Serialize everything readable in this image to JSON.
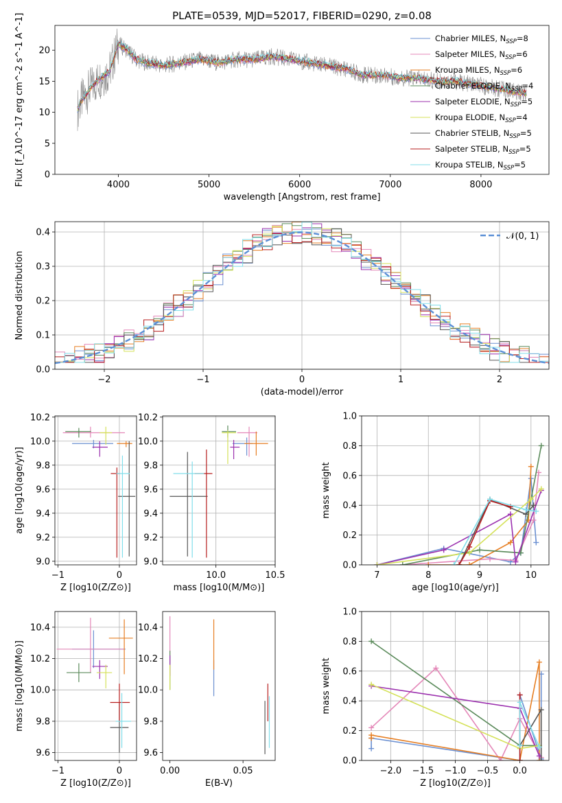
{
  "title": "PLATE=0539, MJD=52017, FIBERID=0290, z=0.08",
  "colors": [
    "#6a8fd1",
    "#e487b8",
    "#e67e22",
    "#5a8a5a",
    "#9b2fae",
    "#d4e157",
    "#555555",
    "#b71c1c",
    "#80deea"
  ],
  "chart_data": [
    {
      "type": "line",
      "panel": "spectrum",
      "title": "PLATE=0539, MJD=52017, FIBERID=0290, z=0.08",
      "xlabel": "wavelength [Angstrom, rest frame]",
      "ylabel": "Flux [f_λ10^-17 erg cm^-2 s^-1 A^-1]",
      "xlim": [
        3300,
        8750
      ],
      "ylim": [
        0,
        24
      ],
      "xticks": [
        4000,
        5000,
        6000,
        7000,
        8000
      ],
      "yticks": [
        0,
        5,
        10,
        15,
        20
      ],
      "legend_position": "top-right",
      "observed": {
        "x": [
          3550,
          3600,
          3700,
          3800,
          3900,
          4000,
          4100,
          4200,
          4300,
          4500,
          4700,
          4900,
          5100,
          5300,
          5500,
          5700,
          5900,
          6100,
          6300,
          6500,
          6700,
          6900,
          7100,
          7300,
          7500,
          7700,
          7900,
          8100,
          8300,
          8500
        ],
        "y": [
          10.5,
          12.0,
          14.0,
          15.5,
          16.5,
          21.0,
          20.0,
          18.5,
          18.0,
          17.5,
          18.0,
          18.5,
          18.0,
          18.5,
          18.5,
          19.0,
          18.5,
          18.0,
          17.5,
          17.0,
          16.0,
          16.0,
          15.5,
          15.5,
          15.0,
          15.0,
          14.5,
          14.0,
          13.5,
          13.0
        ]
      },
      "series": [
        {
          "name": "Chabrier MILES, N_SSP=8",
          "legend": "Chabrier MILES, N",
          "sub": "SSP",
          "suffix": "=8"
        },
        {
          "name": "Salpeter MILES, N_SSP=6",
          "legend": "Salpeter MILES, N",
          "sub": "SSP",
          "suffix": "=6"
        },
        {
          "name": "Kroupa MILES, N_SSP=6",
          "legend": "Kroupa MILES, N",
          "sub": "SSP",
          "suffix": "=6"
        },
        {
          "name": "Chabrier ELODIE, N_SSP=4",
          "legend": "Chabrier ELODIE, N",
          "sub": "SSP",
          "suffix": "=4"
        },
        {
          "name": "Salpeter ELODIE, N_SSP=5",
          "legend": "Salpeter ELODIE, N",
          "sub": "SSP",
          "suffix": "=5"
        },
        {
          "name": "Kroupa ELODIE, N_SSP=4",
          "legend": "Kroupa ELODIE, N",
          "sub": "SSP",
          "suffix": "=4"
        },
        {
          "name": "Chabrier STELIB, N_SSP=5",
          "legend": "Chabrier STELIB, N",
          "sub": "SSP",
          "suffix": "=5"
        },
        {
          "name": "Salpeter STELIB, N_SSP=5",
          "legend": "Salpeter STELIB, N",
          "sub": "SSP",
          "suffix": "=5"
        },
        {
          "name": "Kroupa STELIB, N_SSP=5",
          "legend": "Kroupa STELIB, N",
          "sub": "SSP",
          "suffix": "=5"
        }
      ]
    },
    {
      "type": "histogram",
      "panel": "residuals",
      "xlabel": "(data-model)/error",
      "ylabel": "Normed distribution",
      "xlim": [
        -2.5,
        2.5
      ],
      "ylim": [
        0,
        0.43
      ],
      "xticks": [
        -2,
        -1,
        0,
        1,
        2
      ],
      "yticks": [
        0.0,
        0.1,
        0.2,
        0.3,
        0.4
      ],
      "grid": true,
      "legend_position": "top-right",
      "gaussian_label": "𝒩(0, 1)",
      "bins": [
        -2.5,
        2.5,
        50
      ]
    },
    {
      "type": "errorbar",
      "panel": "age-vs-metallicity",
      "xlabel": "Z [log10(Z/Z⊙)]",
      "ylabel": "age  [log10(age/yr)]",
      "xlim": [
        -1.05,
        0.28
      ],
      "ylim": [
        8.97,
        10.21
      ],
      "xticks": [
        -1,
        0
      ],
      "yticks": [
        9.0,
        9.2,
        9.4,
        9.6,
        9.8,
        10.0,
        10.2
      ],
      "grid": true,
      "points": [
        {
          "x": -0.42,
          "y": 9.98,
          "xerr": [
            0.35,
            0.32
          ],
          "yerr": [
            0.04,
            0.03
          ]
        },
        {
          "x": -0.47,
          "y": 10.07,
          "xerr": [
            0.45,
            0.56
          ],
          "yerr": [
            0.04,
            0.05
          ]
        },
        {
          "x": 0.11,
          "y": 9.98,
          "xerr": [
            0.15,
            0.1
          ],
          "yerr": [
            0.03,
            0.02
          ]
        },
        {
          "x": -0.66,
          "y": 10.08,
          "xerr": [
            0.22,
            0.2
          ],
          "yerr": [
            0.05,
            0.03
          ]
        },
        {
          "x": -0.32,
          "y": 9.95,
          "xerr": [
            0.12,
            0.13
          ],
          "yerr": [
            0.08,
            0.05
          ]
        },
        {
          "x": -0.22,
          "y": 10.07,
          "xerr": [
            0.1,
            0.1
          ],
          "yerr": [
            0.1,
            0.05
          ]
        },
        {
          "x": 0.16,
          "y": 9.54,
          "xerr": [
            0.18,
            0.1
          ],
          "yerr": [
            0.5,
            0.46
          ]
        },
        {
          "x": -0.04,
          "y": 9.73,
          "xerr": [
            0.1,
            0.05
          ],
          "yerr": [
            0.7,
            0.05
          ]
        },
        {
          "x": 0.05,
          "y": 9.73,
          "xerr": [
            0.1,
            0.12
          ],
          "yerr": [
            0.7,
            0.15
          ]
        }
      ]
    },
    {
      "type": "errorbar",
      "panel": "age-vs-mass",
      "xlabel": "mass [log10(M/M⊙)]",
      "ylabel": "",
      "xlim": [
        9.55,
        10.5
      ],
      "ylim": [
        8.97,
        10.21
      ],
      "xticks": [
        10.0,
        10.5
      ],
      "yticks": [
        9.0,
        9.2,
        9.4,
        9.6,
        9.8,
        10.0,
        10.2
      ],
      "grid": true,
      "points": [
        {
          "x": 10.26,
          "y": 9.98,
          "xerr": [
            0.12,
            0.05
          ],
          "yerr": [
            0.1,
            0.05
          ]
        },
        {
          "x": 10.28,
          "y": 10.07,
          "xerr": [
            0.1,
            0.07
          ],
          "yerr": [
            0.2,
            0.05
          ]
        },
        {
          "x": 10.34,
          "y": 9.98,
          "xerr": [
            0.1,
            0.1
          ],
          "yerr": [
            0.1,
            0.1
          ]
        },
        {
          "x": 10.1,
          "y": 10.08,
          "xerr": [
            0.05,
            0.07
          ],
          "yerr": [
            0.05,
            0.05
          ]
        },
        {
          "x": 10.15,
          "y": 9.95,
          "xerr": [
            0.03,
            0.05
          ],
          "yerr": [
            0.1,
            0.06
          ]
        },
        {
          "x": 10.1,
          "y": 10.07,
          "xerr": [
            0.05,
            0.07
          ],
          "yerr": [
            0.26,
            0.02
          ]
        },
        {
          "x": 9.76,
          "y": 9.54,
          "xerr": [
            0.15,
            0.17
          ],
          "yerr": [
            0.5,
            0.37
          ]
        },
        {
          "x": 9.92,
          "y": 9.73,
          "xerr": [
            0.1,
            0.05
          ],
          "yerr": [
            0.7,
            0.2
          ]
        },
        {
          "x": 9.8,
          "y": 9.73,
          "xerr": [
            0.16,
            0.1
          ],
          "yerr": [
            0.7,
            0.1
          ]
        }
      ]
    },
    {
      "type": "line",
      "panel": "mass-weight-vs-age",
      "xlabel": "age  [log10(age/yr)]",
      "ylabel": "mass weight",
      "xlim": [
        6.7,
        10.35
      ],
      "ylim": [
        0,
        1.0
      ],
      "xticks": [
        7,
        8,
        9,
        10
      ],
      "yticks": [
        0.0,
        0.2,
        0.4,
        0.6,
        0.8,
        1.0
      ],
      "grid": true,
      "series": [
        {
          "x": [
            7.0,
            8.3,
            9.6,
            9.8,
            10.0,
            10.1
          ],
          "y": [
            0.0,
            0.11,
            0.02,
            0.08,
            0.58,
            0.15
          ]
        },
        {
          "x": [
            7.5,
            9.2,
            9.7,
            10.05,
            10.15
          ],
          "y": [
            0.0,
            0.04,
            0.03,
            0.3,
            0.62
          ]
        },
        {
          "x": [
            8.0,
            8.8,
            9.6,
            9.95,
            10.0
          ],
          "y": [
            0.0,
            0.0,
            0.15,
            0.3,
            0.66
          ]
        },
        {
          "x": [
            7.5,
            9.0,
            9.8,
            10.2
          ],
          "y": [
            0.0,
            0.1,
            0.08,
            0.8
          ]
        },
        {
          "x": [
            7.0,
            8.3,
            9.6,
            9.7,
            10.2
          ],
          "y": [
            0.0,
            0.1,
            0.34,
            0.02,
            0.5
          ]
        },
        {
          "x": [
            7.0,
            8.8,
            10.0,
            10.2
          ],
          "y": [
            0.0,
            0.08,
            0.44,
            0.51
          ]
        },
        {
          "x": [
            8.6,
            9.2,
            9.9,
            10.05
          ],
          "y": [
            0.0,
            0.44,
            0.34,
            0.4
          ]
        },
        {
          "x": [
            8.6,
            8.8,
            9.2,
            9.6
          ],
          "y": [
            0.0,
            0.12,
            0.43,
            0.39
          ]
        },
        {
          "x": [
            8.5,
            9.2,
            9.9,
            10.1
          ],
          "y": [
            0.0,
            0.44,
            0.37,
            0.36
          ]
        }
      ]
    },
    {
      "type": "errorbar",
      "panel": "mass-vs-metallicity",
      "xlabel": "Z [log10(Z/Z⊙)]",
      "ylabel": "mass [log10(M/M⊙)]",
      "xlim": [
        -1.05,
        0.28
      ],
      "ylim": [
        9.55,
        10.5
      ],
      "xticks": [
        -1,
        0
      ],
      "yticks": [
        9.6,
        9.8,
        10.0,
        10.2,
        10.4
      ],
      "grid": true,
      "points": [
        {
          "x": -0.42,
          "y": 10.26,
          "xerr": [
            0.35,
            0.52
          ],
          "yerr": [
            0.12,
            0.12
          ]
        },
        {
          "x": -0.47,
          "y": 10.26,
          "xerr": [
            0.55,
            0.56
          ],
          "yerr": [
            0.15,
            0.2
          ]
        },
        {
          "x": 0.08,
          "y": 10.33,
          "xerr": [
            0.25,
            0.14
          ],
          "yerr": [
            0.23,
            0.12
          ]
        },
        {
          "x": -0.66,
          "y": 10.11,
          "xerr": [
            0.2,
            0.2
          ],
          "yerr": [
            0.06,
            0.06
          ]
        },
        {
          "x": -0.32,
          "y": 10.15,
          "xerr": [
            0.12,
            0.13
          ],
          "yerr": [
            0.08,
            0.04
          ]
        },
        {
          "x": -0.22,
          "y": 10.11,
          "xerr": [
            0.15,
            0.1
          ],
          "yerr": [
            0.1,
            0.05
          ]
        },
        {
          "x": 0.0,
          "y": 9.76,
          "xerr": [
            0.15,
            0.15
          ],
          "yerr": [
            0.16,
            0.16
          ]
        },
        {
          "x": 0.0,
          "y": 9.92,
          "xerr": [
            0.15,
            0.17
          ],
          "yerr": [
            0.12,
            0.12
          ]
        },
        {
          "x": 0.04,
          "y": 9.8,
          "xerr": [
            0.1,
            0.15
          ],
          "yerr": [
            0.17,
            0.18
          ]
        }
      ]
    },
    {
      "type": "errorbar",
      "panel": "mass-vs-extinction",
      "xlabel": "E(B-V)",
      "ylabel": "",
      "xlim": [
        -0.005,
        0.072
      ],
      "ylim": [
        9.55,
        10.5
      ],
      "xticks": [
        0.0,
        0.05
      ],
      "yticks": [
        9.6,
        9.8,
        10.0,
        10.2,
        10.4
      ],
      "grid": false,
      "points": [
        {
          "x": 0.03,
          "y": 10.06,
          "xerr": [
            0,
            0
          ],
          "yerr": [
            0.1,
            0.13
          ]
        },
        {
          "x": 0.0,
          "y": 10.25,
          "xerr": [
            0,
            0
          ],
          "yerr": [
            0.08,
            0.22
          ]
        },
        {
          "x": 0.03,
          "y": 10.33,
          "xerr": [
            0,
            0
          ],
          "yerr": [
            0.2,
            0.12
          ]
        },
        {
          "x": 0.0,
          "y": 10.1,
          "xerr": [
            0,
            0
          ],
          "yerr": [
            0.1,
            0.15
          ]
        },
        {
          "x": 0.0,
          "y": 10.17,
          "xerr": [
            0,
            0
          ],
          "yerr": [
            0.08,
            0.05
          ]
        },
        {
          "x": 0.0,
          "y": 10.11,
          "xerr": [
            0,
            0
          ],
          "yerr": [
            0.11,
            0.05
          ]
        },
        {
          "x": 0.065,
          "y": 9.76,
          "xerr": [
            0,
            0
          ],
          "yerr": [
            0.17,
            0.17
          ]
        },
        {
          "x": 0.067,
          "y": 9.92,
          "xerr": [
            0,
            0
          ],
          "yerr": [
            0.12,
            0.12
          ]
        },
        {
          "x": 0.068,
          "y": 9.8,
          "xerr": [
            0,
            0
          ],
          "yerr": [
            0.17,
            0.16
          ]
        }
      ]
    },
    {
      "type": "line",
      "panel": "mass-weight-vs-metallicity",
      "xlabel": "Z [log10(Z/Z⊙)]",
      "ylabel": "mass weight",
      "xlim": [
        -2.45,
        0.45
      ],
      "ylim": [
        0,
        1.0
      ],
      "xticks": [
        -2.0,
        -1.5,
        -1.0,
        -0.5,
        0.0
      ],
      "yticks": [
        0.0,
        0.2,
        0.4,
        0.6,
        0.8,
        1.0
      ],
      "grid": true,
      "series": [
        {
          "x": [
            -2.3,
            -2.3,
            0.0,
            0.0,
            0.33,
            0.33
          ],
          "y": [
            0.08,
            0.15,
            0.0,
            0.44,
            0.01,
            0.58
          ]
        },
        {
          "x": [
            -2.3,
            -1.3,
            -0.3,
            0.0,
            0.33
          ],
          "y": [
            0.22,
            0.62,
            0.0,
            0.28,
            0.02
          ]
        },
        {
          "x": [
            -2.3,
            -2.3,
            0.0,
            0.3,
            0.3
          ],
          "y": [
            0.15,
            0.17,
            0.0,
            0.66,
            0.0
          ]
        },
        {
          "x": [
            -2.3,
            0.0,
            0.3
          ],
          "y": [
            0.8,
            0.1,
            0.1
          ]
        },
        {
          "x": [
            -2.3,
            0.0,
            0.3
          ],
          "y": [
            0.5,
            0.35,
            0.03
          ]
        },
        {
          "x": [
            -2.3,
            0.0,
            0.3
          ],
          "y": [
            0.51,
            0.08,
            0.1
          ]
        },
        {
          "x": [
            0.0,
            0.33,
            0.33
          ],
          "y": [
            0.1,
            0.34,
            0.0
          ]
        },
        {
          "x": [
            0.0,
            0.0
          ],
          "y": [
            0.0,
            0.44
          ]
        },
        {
          "x": [
            0.0,
            0.0,
            0.3
          ],
          "y": [
            0.1,
            0.39,
            0.09
          ]
        }
      ]
    }
  ]
}
